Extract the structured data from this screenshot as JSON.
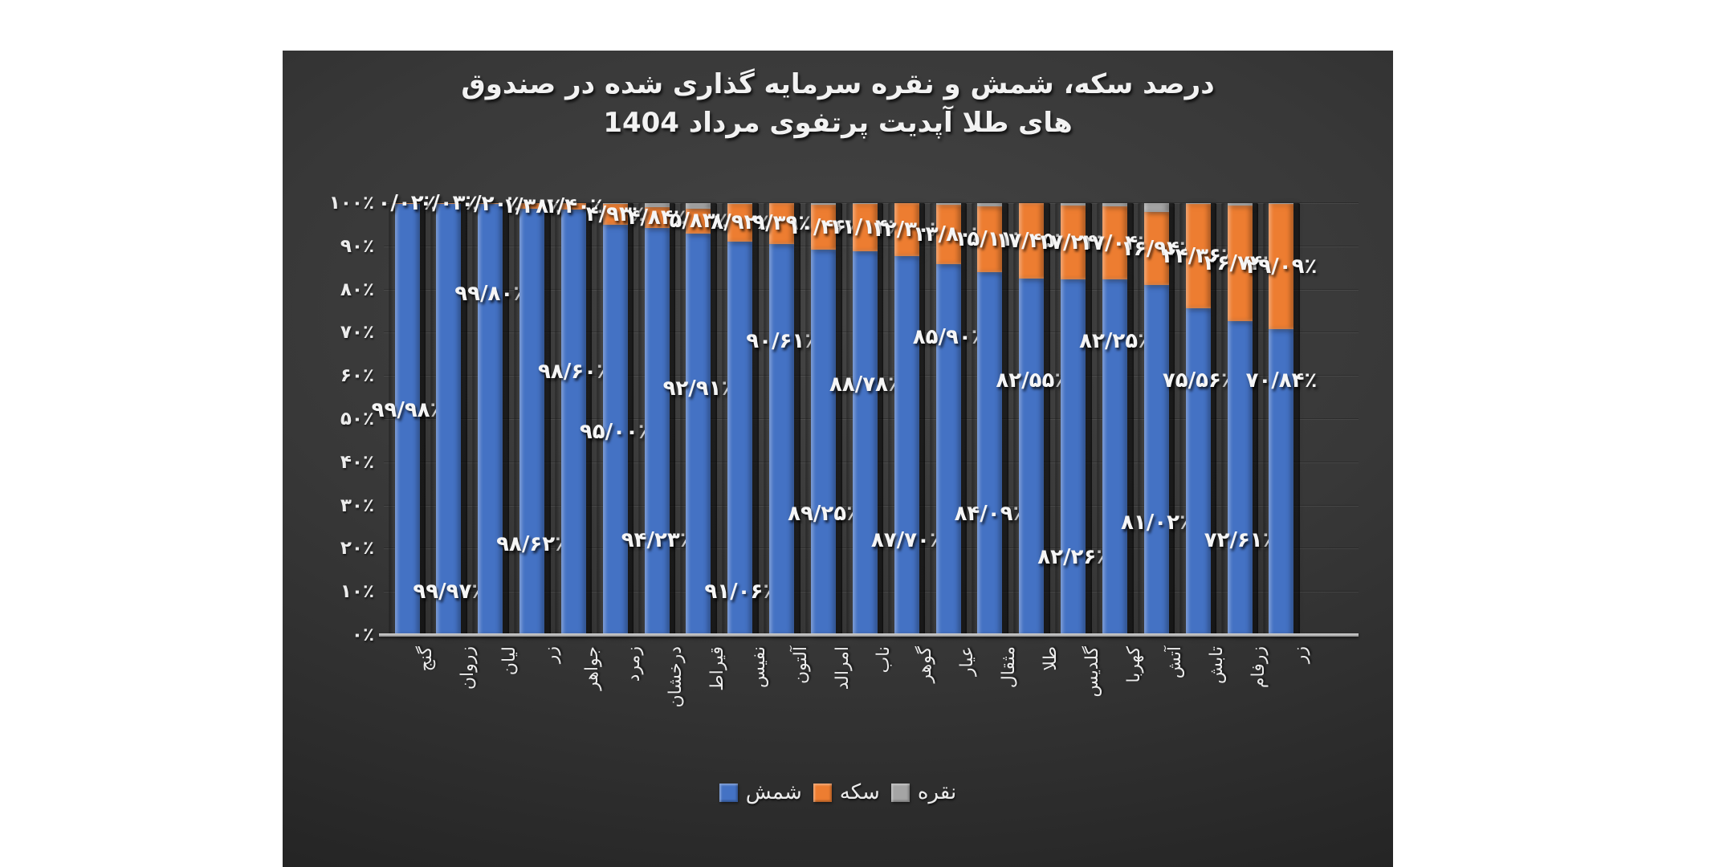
{
  "title": {
    "line1": "درصد سکه، شمش و نقره سرمایه گذاری شده در صندوق",
    "line2": "های طلا آپدیت پرتفوی مرداد 1404"
  },
  "y_axis": {
    "labels": [
      "۱۰۰٪",
      "۹۰٪",
      "۸۰٪",
      "۷۰٪",
      "۶۰٪",
      "۵۰٪",
      "۴۰٪",
      "۳۰٪",
      "۲۰٪",
      "۱۰٪",
      "۰٪"
    ]
  },
  "legend": [
    {
      "label": "شمش",
      "color": "#4472C4"
    },
    {
      "label": "سکه",
      "color": "#ED7D31"
    },
    {
      "label": "نقره",
      "color": "#A5A5A5"
    }
  ],
  "colors": {
    "shamsh": "#4472C4",
    "sekeh": "#ED7D31",
    "noqreh": "#A5A5A5",
    "background": "#2e2e2e"
  },
  "chart_data": {
    "type": "bar",
    "stacked": true,
    "title": "درصد سکه، شمش و نقره سرمایه گذاری شده در صندوق های طلا آپدیت پرتفوی مرداد 1404",
    "xlabel": "",
    "ylabel": "",
    "ylim": [
      0,
      100
    ],
    "grid": true,
    "legend_position": "bottom",
    "categories": [
      "گنج",
      "زروان",
      "لیان",
      "زر",
      "جواهر",
      "زمرد",
      "درخشان",
      "قیراط",
      "نفیس",
      "آلتون",
      "امرالد",
      "ناب",
      "گوهر",
      "عیار",
      "مثقال",
      "طلا",
      "گلدیس",
      "کهربا",
      "آتش",
      "تابش",
      "زرفام",
      "زر"
    ],
    "series": [
      {
        "name": "شمش",
        "color": "#4472C4",
        "values": [
          99.98,
          99.97,
          99.8,
          98.62,
          98.6,
          95.0,
          94.23,
          92.91,
          91.06,
          90.61,
          89.25,
          88.78,
          87.7,
          85.9,
          84.09,
          82.55,
          82.26,
          82.25,
          81.02,
          75.56,
          72.61,
          70.84
        ]
      },
      {
        "name": "سکه",
        "color": "#ED7D31",
        "values": [
          0.02,
          0.03,
          0.2,
          1.38,
          1.4,
          4.93,
          4.84,
          5.83,
          8.92,
          9.39,
          10.46,
          11.14,
          12.3,
          13.8,
          15.11,
          17.45,
          17.24,
          17.04,
          16.94,
          24.36,
          26.74,
          29.09
        ]
      },
      {
        "name": "نقره",
        "color": "#A5A5A5",
        "values": [
          0,
          0,
          0,
          0,
          0,
          0.07,
          0.93,
          1.26,
          0.02,
          0,
          0.29,
          0.08,
          0,
          0.3,
          0.8,
          0,
          0.5,
          0.71,
          2.04,
          0.08,
          0.65,
          0.07
        ]
      }
    ],
    "bar_labels": {
      "shamsh": [
        "۹۹/۹۸٪",
        "۹۹/۹۷٪",
        "۹۹/۸۰٪",
        "۹۸/۶۲٪",
        "۹۸/۶۰٪",
        "۹۵/۰۰٪",
        "۹۴/۲۳٪",
        "۹۲/۹۱٪",
        "۹۱/۰۶٪",
        "۹۰/۶۱٪",
        "۸۹/۲۵٪",
        "۸۸/۷۸٪",
        "۸۷/۷۰٪",
        "۸۵/۹۰٪",
        "۸۴/۰۹٪",
        "۸۲/۵۵٪",
        "۸۲/۲۶٪",
        "۸۲/۲۵٪",
        "۸۱/۰۲٪",
        "۷۵/۵۶٪",
        "۷۲/۶۱٪",
        "۷۰/۸۴٪"
      ],
      "shamsh_label_height_pct": [
        52,
        10,
        79,
        21,
        61,
        47,
        22,
        57,
        10,
        68,
        28,
        58,
        22,
        69,
        28,
        59,
        18,
        68,
        26,
        59,
        22,
        59
      ],
      "sekeh": [
        "۰/۰۲٪",
        "۰/۰۳٪",
        "۰/۲۰٪",
        "۱/۳۸٪",
        "۱/۴۰٪",
        "۴/۹۳٪",
        "۴/۸۴٪",
        "۵/۸۳٪",
        "۸/۹۲٪",
        "۹/۳۹٪",
        "۱۰/۴۶٪",
        "۱۱/۱۴٪",
        "۱۲/۳۰٪",
        "۱۳/۸۰٪",
        "۱۵/۱۱٪",
        "۱۷/۴۵٪",
        "۱۷/۲۴٪",
        "۱۷/۰۴٪",
        "۱۶/۹۴٪",
        "۲۴/۳۶٪",
        "۲۶/۷۴٪",
        "۲۹/۰۹٪"
      ]
    }
  }
}
